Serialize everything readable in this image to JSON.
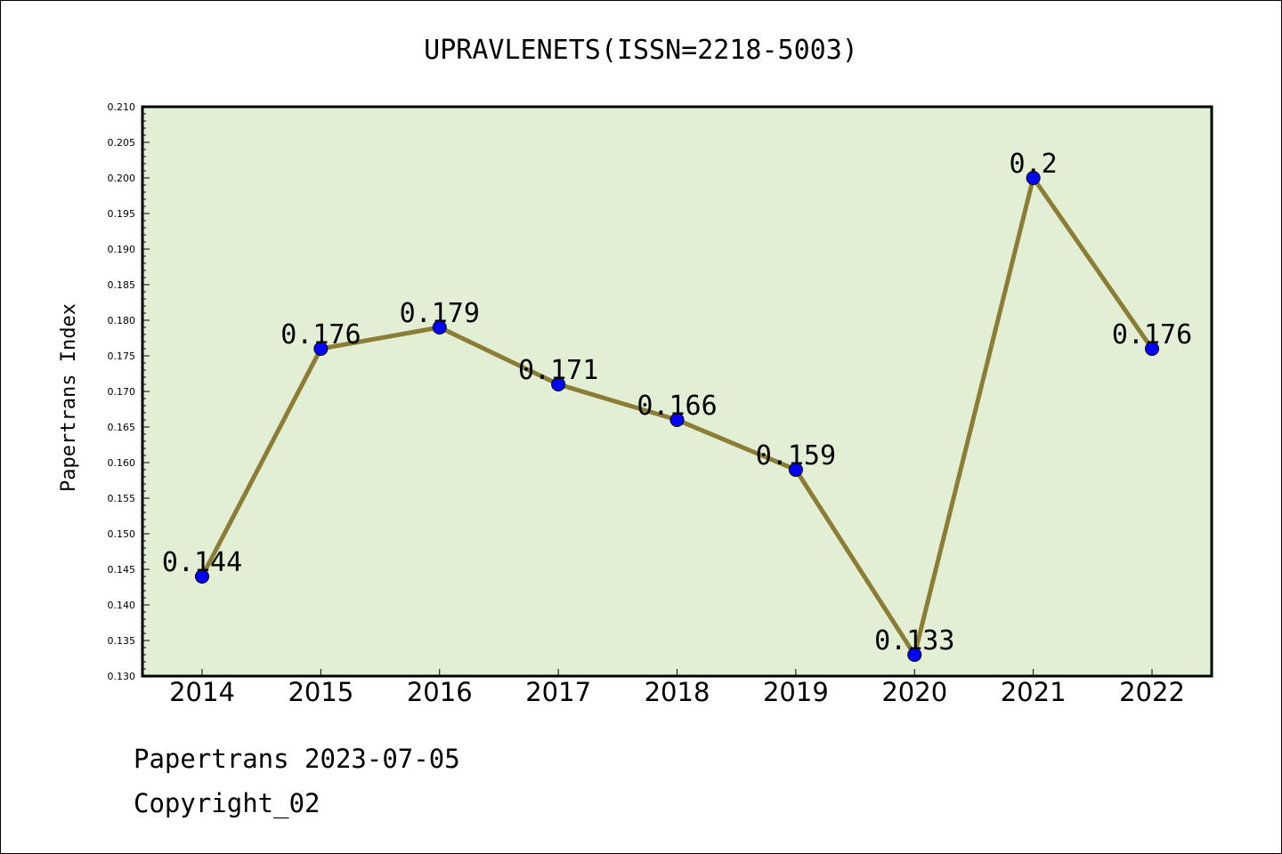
{
  "chart_data": {
    "type": "line",
    "title": "UPRAVLENETS(ISSN=2218-5003)",
    "ylabel": "Papertrans Index",
    "xlabel": "",
    "categories": [
      "2014",
      "2015",
      "2016",
      "2017",
      "2018",
      "2019",
      "2020",
      "2021",
      "2022"
    ],
    "series": [
      {
        "values": [
          0.144,
          0.176,
          0.179,
          0.171,
          0.166,
          0.159,
          0.133,
          0.2,
          0.176
        ],
        "labels": [
          "0.144",
          "0.176",
          "0.179",
          "0.171",
          "0.166",
          "0.159",
          "0.133",
          "0.2",
          "0.176"
        ]
      }
    ],
    "ylim": [
      0.13,
      0.21
    ],
    "yticks": [
      "0.130",
      "0.135",
      "0.140",
      "0.145",
      "0.150",
      "0.155",
      "0.160",
      "0.165",
      "0.170",
      "0.175",
      "0.180",
      "0.185",
      "0.190",
      "0.195",
      "0.200",
      "0.205",
      "0.210"
    ],
    "grid": false,
    "colors": {
      "plot_background": "#e2efd5",
      "line": "#8b7d35",
      "marker": "#0000ff"
    }
  },
  "footer": {
    "date_line": "Papertrans 2023-07-05",
    "copyright_line": "Copyright_02"
  }
}
